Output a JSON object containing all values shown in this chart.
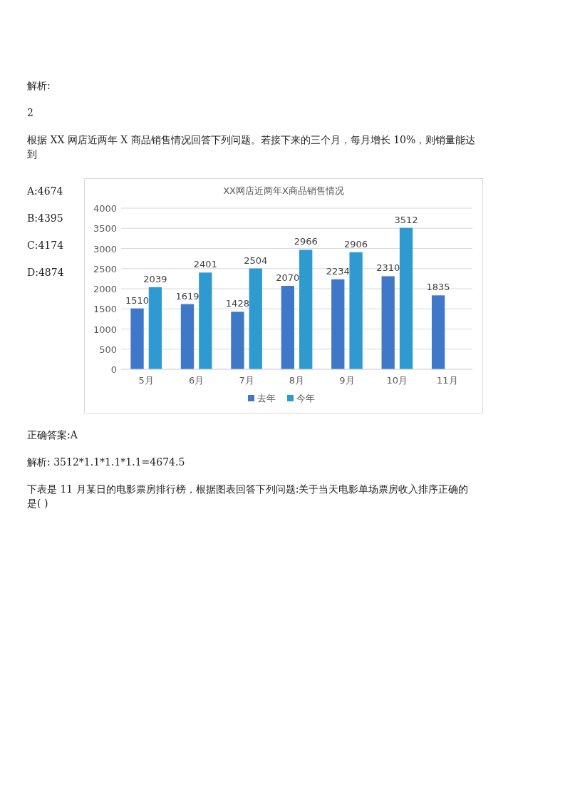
{
  "chart_data": {
    "type": "bar",
    "title": "XX网店近两年X商品销售情况",
    "categories": [
      "5月",
      "6月",
      "7月",
      "8月",
      "9月",
      "10月",
      "11月"
    ],
    "series": [
      {
        "name": "去年",
        "color": "#3f78c8",
        "values": [
          1510,
          1619,
          1428,
          2070,
          2234,
          2310,
          1835
        ]
      },
      {
        "name": "今年",
        "color": "#2e9ad0",
        "values": [
          2039,
          2401,
          2504,
          2966,
          2906,
          3512,
          null
        ]
      }
    ],
    "ylim": [
      0,
      4000
    ],
    "yticks": [
      0,
      500,
      1000,
      1500,
      2000,
      2500,
      3000,
      3500,
      4000
    ],
    "grid": "y",
    "legend": "bottom",
    "data_labels": true,
    "annotations": [
      "解析:",
      "2",
      "根据 XX 网店近两年 X 商品销售情况回答下列问题。若接下来的三个月，每月增长 10%，则销量能达到",
      "A:4674",
      "B:4395",
      "C:4174",
      "D:4874",
      "正确答案:A",
      "解析: 3512*1.1*1.1*1.1=4674.5",
      "下表是 11 月某日的电影票房排行榜，根据图表回答下列问题:关于当天电影单场票房收入排序正确的是( )"
    ]
  }
}
